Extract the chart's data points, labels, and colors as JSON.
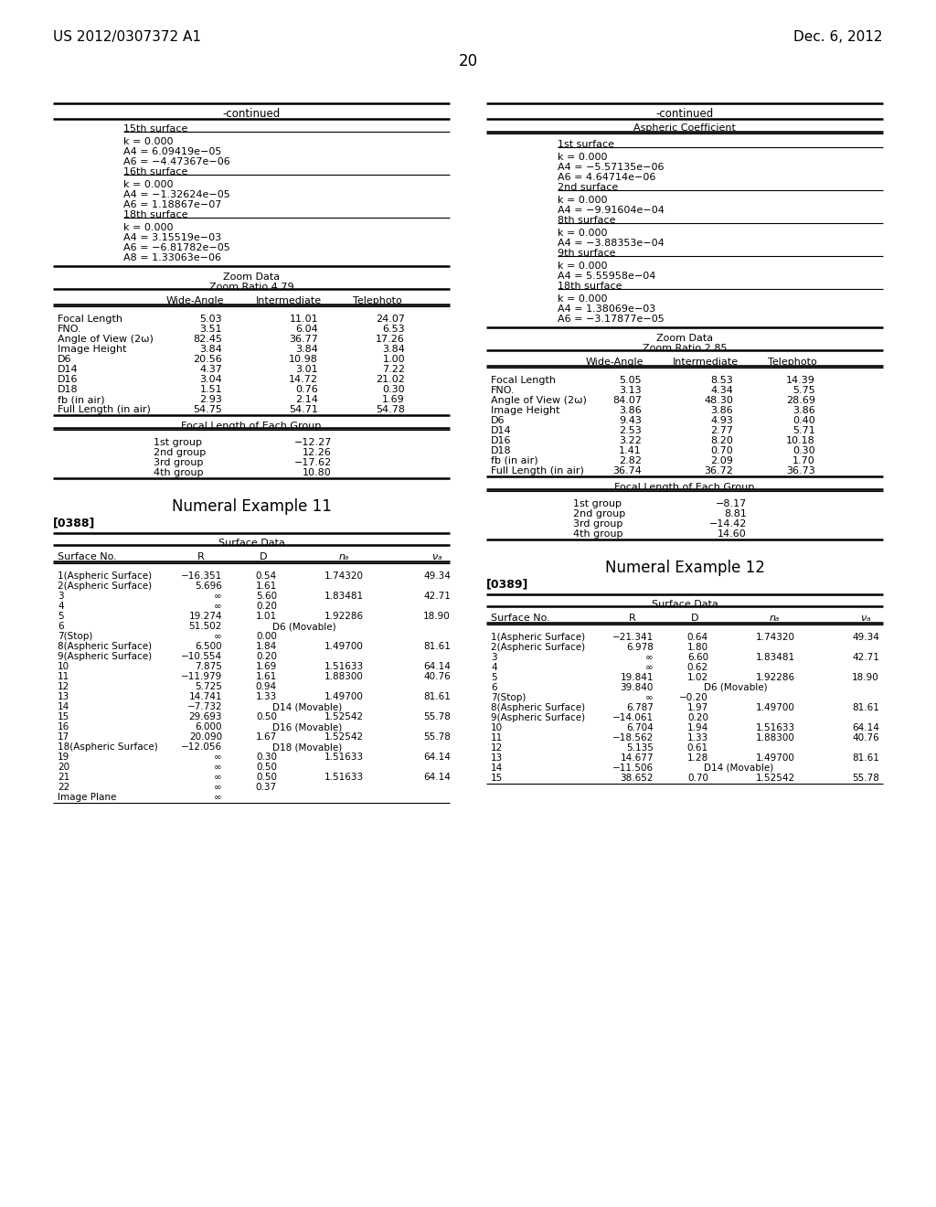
{
  "background_color": "#ffffff",
  "header_left": "US 2012/0307372 A1",
  "header_right": "Dec. 6, 2012",
  "page_number": "20",
  "left_col": {
    "continued_label": "-continued",
    "aspheric_sections": [
      {
        "surface": "15th surface",
        "lines": [
          "k = 0.000",
          "A4 = 6.09419e−05",
          "A6 = −4.47367e−06"
        ]
      },
      {
        "surface": "16th surface",
        "lines": [
          "k = 0.000",
          "A4 = −1.32624e−05",
          "A6 = 1.18867e−07"
        ]
      },
      {
        "surface": "18th surface",
        "lines": [
          "k = 0.000",
          "A4 = 3.15519e−03",
          "A6 = −6.81782e−05",
          "A8 = 1.33063e−06"
        ]
      }
    ],
    "zoom_data_title": "Zoom Data",
    "zoom_ratio": "Zoom Ratio 4.79",
    "zoom_col_headers": [
      "",
      "Wide-Angle",
      "Intermediate",
      "Telephoto"
    ],
    "zoom_rows": [
      [
        "Focal Length",
        "5.03",
        "11.01",
        "24.07"
      ],
      [
        "FNO.",
        "3.51",
        "6.04",
        "6.53"
      ],
      [
        "Angle of View (2ω)",
        "82.45",
        "36.77",
        "17.26"
      ],
      [
        "Image Height",
        "3.84",
        "3.84",
        "3.84"
      ],
      [
        "D6",
        "20.56",
        "10.98",
        "1.00"
      ],
      [
        "D14",
        "4.37",
        "3.01",
        "7.22"
      ],
      [
        "D16",
        "3.04",
        "14.72",
        "21.02"
      ],
      [
        "D18",
        "1.51",
        "0.76",
        "0.30"
      ],
      [
        "fb (in air)",
        "2.93",
        "2.14",
        "1.69"
      ],
      [
        "Full Length (in air)",
        "54.75",
        "54.71",
        "54.78"
      ]
    ],
    "focal_title": "Focal Length of Each Group",
    "focal_rows": [
      [
        "1st group",
        "−12.27"
      ],
      [
        "2nd group",
        "12.26"
      ],
      [
        "3rd group",
        "−17.62"
      ],
      [
        "4th group",
        "10.80"
      ]
    ],
    "example_title": "Numeral Example 11",
    "example_tag": "[0388]",
    "surface_data_title": "Surface Data",
    "surface_rows": [
      [
        "1(Aspheric Surface)",
        "−16.351",
        "0.54",
        "1.74320",
        "49.34"
      ],
      [
        "2(Aspheric Surface)",
        "5.696",
        "1.61",
        "",
        ""
      ],
      [
        "3",
        "∞",
        "5.60",
        "1.83481",
        "42.71"
      ],
      [
        "4",
        "∞",
        "0.20",
        "",
        ""
      ],
      [
        "5",
        "19.274",
        "1.01",
        "1.92286",
        "18.90"
      ],
      [
        "6",
        "51.502",
        "",
        "D6 (Movable)",
        ""
      ],
      [
        "7(Stop)",
        "∞",
        "0.00",
        "",
        ""
      ],
      [
        "8(Aspheric Surface)",
        "6.500",
        "1.84",
        "1.49700",
        "81.61"
      ],
      [
        "9(Aspheric Surface)",
        "−10.554",
        "0.20",
        "",
        ""
      ],
      [
        "10",
        "7.875",
        "1.69",
        "1.51633",
        "64.14"
      ],
      [
        "11",
        "−11.979",
        "1.61",
        "1.88300",
        "40.76"
      ],
      [
        "12",
        "5.725",
        "0.94",
        "",
        ""
      ],
      [
        "13",
        "14.741",
        "1.33",
        "1.49700",
        "81.61"
      ],
      [
        "14",
        "−7.732",
        "",
        "D14 (Movable)",
        ""
      ],
      [
        "15",
        "29.693",
        "0.50",
        "1.52542",
        "55.78"
      ],
      [
        "16",
        "6.000",
        "",
        "D16 (Movable)",
        ""
      ],
      [
        "17",
        "20.090",
        "1.67",
        "1.52542",
        "55.78"
      ],
      [
        "18(Aspheric Surface)",
        "−12.056",
        "",
        "D18 (Movable)",
        ""
      ],
      [
        "19",
        "∞",
        "0.30",
        "1.51633",
        "64.14"
      ],
      [
        "20",
        "∞",
        "0.50",
        "",
        ""
      ],
      [
        "21",
        "∞",
        "0.50",
        "1.51633",
        "64.14"
      ],
      [
        "22",
        "∞",
        "0.37",
        "",
        ""
      ],
      [
        "Image Plane",
        "∞",
        "",
        "",
        ""
      ]
    ]
  },
  "right_col": {
    "continued_label": "-continued",
    "aspheric_title": "Aspheric Coefficient",
    "aspheric_sections": [
      {
        "surface": "1st surface",
        "lines": [
          "k = 0.000",
          "A4 = −5.57135e−06",
          "A6 = 4.64714e−06"
        ]
      },
      {
        "surface": "2nd surface",
        "lines": [
          "k = 0.000",
          "A4 = −9.91604e−04"
        ]
      },
      {
        "surface": "8th surface",
        "lines": [
          "k = 0.000",
          "A4 = −3.88353e−04"
        ]
      },
      {
        "surface": "9th surface",
        "lines": [
          "k = 0.000",
          "A4 = 5.55958e−04"
        ]
      },
      {
        "surface": "18th surface",
        "lines": [
          "k = 0.000",
          "A4 = 1.38069e−03",
          "A6 = −3.17877e−05"
        ]
      }
    ],
    "zoom_data_title": "Zoom Data",
    "zoom_ratio": "Zoom Ratio 2.85",
    "zoom_col_headers": [
      "",
      "Wide-Angle",
      "Intermediate",
      "Telephoto"
    ],
    "zoom_rows": [
      [
        "Focal Length",
        "5.05",
        "8.53",
        "14.39"
      ],
      [
        "FNO.",
        "3.13",
        "4.34",
        "5.75"
      ],
      [
        "Angle of View (2ω)",
        "84.07",
        "48.30",
        "28.69"
      ],
      [
        "Image Height",
        "3.86",
        "3.86",
        "3.86"
      ],
      [
        "D6",
        "9.43",
        "4.93",
        "0.40"
      ],
      [
        "D14",
        "2.53",
        "2.77",
        "5.71"
      ],
      [
        "D16",
        "3.22",
        "8.20",
        "10.18"
      ],
      [
        "D18",
        "1.41",
        "0.70",
        "0.30"
      ],
      [
        "fb (in air)",
        "2.82",
        "2.09",
        "1.70"
      ],
      [
        "Full Length (in air)",
        "36.74",
        "36.72",
        "36.73"
      ]
    ],
    "focal_title": "Focal Length of Each Group",
    "focal_rows": [
      [
        "1st group",
        "−8.17"
      ],
      [
        "2nd group",
        "8.81"
      ],
      [
        "3rd group",
        "−14.42"
      ],
      [
        "4th group",
        "14.60"
      ]
    ],
    "example_title": "Numeral Example 12",
    "example_tag": "[0389]",
    "surface_data_title": "Surface Data",
    "surface_rows": [
      [
        "1(Aspheric Surface)",
        "−21.341",
        "0.64",
        "1.74320",
        "49.34"
      ],
      [
        "2(Aspheric Surface)",
        "6.978",
        "1.80",
        "",
        ""
      ],
      [
        "3",
        "∞",
        "6.60",
        "1.83481",
        "42.71"
      ],
      [
        "4",
        "∞",
        "0.62",
        "",
        ""
      ],
      [
        "5",
        "19.841",
        "1.02",
        "1.92286",
        "18.90"
      ],
      [
        "6",
        "39.840",
        "",
        "D6 (Movable)",
        ""
      ],
      [
        "7(Stop)",
        "∞",
        "−0.20",
        "",
        ""
      ],
      [
        "8(Aspheric Surface)",
        "6.787",
        "1.97",
        "1.49700",
        "81.61"
      ],
      [
        "9(Aspheric Surface)",
        "−14.061",
        "0.20",
        "",
        ""
      ],
      [
        "10",
        "6.704",
        "1.94",
        "1.51633",
        "64.14"
      ],
      [
        "11",
        "−18.562",
        "1.33",
        "1.88300",
        "40.76"
      ],
      [
        "12",
        "5.135",
        "0.61",
        "",
        ""
      ],
      [
        "13",
        "14.677",
        "1.28",
        "1.49700",
        "81.61"
      ],
      [
        "14",
        "−11.506",
        "",
        "D14 (Movable)",
        ""
      ],
      [
        "15",
        "38.652",
        "0.70",
        "1.52542",
        "55.78"
      ]
    ]
  }
}
